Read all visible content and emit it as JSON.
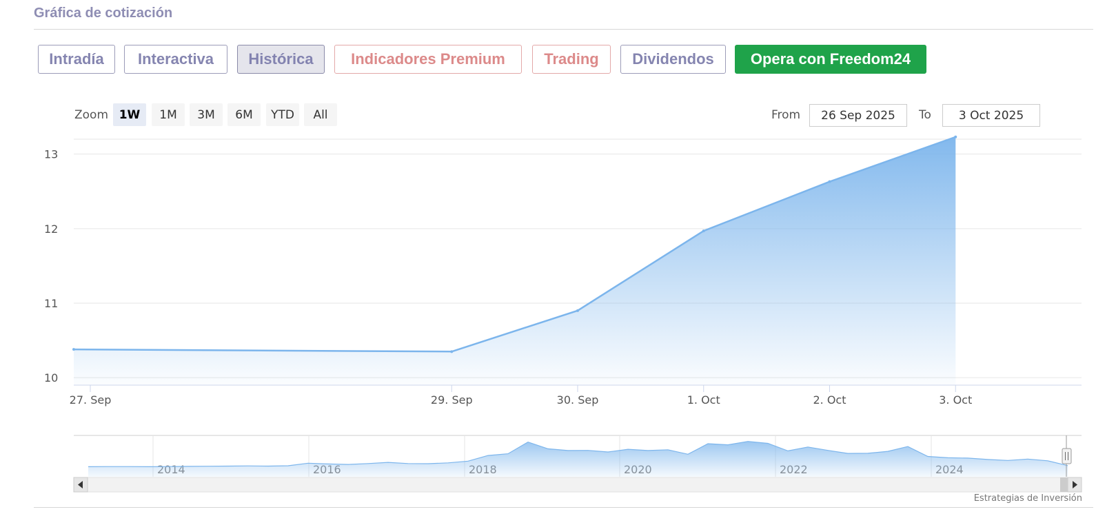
{
  "header": {
    "title": "Gráfica de cotización"
  },
  "tabs": [
    {
      "label": "Intradía",
      "state": "normal"
    },
    {
      "label": "Interactiva",
      "state": "normal"
    },
    {
      "label": "Histórica",
      "state": "active"
    },
    {
      "label": "Indicadores Premium",
      "state": "premium"
    },
    {
      "label": "Trading",
      "state": "premium"
    },
    {
      "label": "Dividendos",
      "state": "normal"
    },
    {
      "label": "Opera con Freedom24",
      "state": "cta"
    }
  ],
  "range_selector": {
    "zoom_label": "Zoom",
    "buttons": [
      "1W",
      "1M",
      "3M",
      "6M",
      "YTD",
      "All"
    ],
    "selected": "1W",
    "from_label": "From",
    "from_value": "26 Sep 2025",
    "to_label": "To",
    "to_value": "3 Oct 2025"
  },
  "colors": {
    "series": "#7cb5ec",
    "cta": "#1fa34a",
    "tab_text": "#8585b0",
    "premium_text": "#dc8a8a"
  },
  "chart_data": {
    "type": "area",
    "title": "",
    "xlabel": "",
    "ylabel": "",
    "ylim": [
      9.9,
      13.2
    ],
    "y_ticks": [
      10,
      11,
      12,
      13
    ],
    "x_ticks": [
      "27. Sep",
      "29. Sep",
      "30. Sep",
      "1. Oct",
      "2. Oct",
      "3. Oct"
    ],
    "series": [
      {
        "x": [
          "2025-09-26",
          "2025-09-29",
          "2025-09-30",
          "2025-10-01",
          "2025-10-02",
          "2025-10-03"
        ],
        "values": [
          10.38,
          10.35,
          10.9,
          11.97,
          12.63,
          13.23
        ]
      }
    ],
    "grid": true,
    "legend": "none"
  },
  "navigator": {
    "years": [
      "2014",
      "2016",
      "2018",
      "2020",
      "2022",
      "2024"
    ],
    "series_values": [
      10.6,
      10.7,
      10.7,
      10.6,
      10.7,
      10.8,
      10.9,
      11.0,
      11.1,
      11.0,
      11.2,
      12.8,
      12.3,
      12.0,
      12.6,
      13.3,
      12.6,
      12.5,
      13.0,
      14.1,
      17.6,
      18.7,
      26.0,
      21.8,
      20.7,
      20.8,
      19.8,
      21.5,
      20.7,
      21.2,
      18.4,
      25.0,
      24.3,
      26.4,
      25.2,
      20.5,
      22.9,
      20.8,
      18.9,
      19.0,
      20.2,
      23.2,
      17.0,
      16.2,
      16.0,
      15.1,
      14.5,
      15.4,
      14.3,
      11.3
    ]
  },
  "credits": "Estrategias de Inversión"
}
